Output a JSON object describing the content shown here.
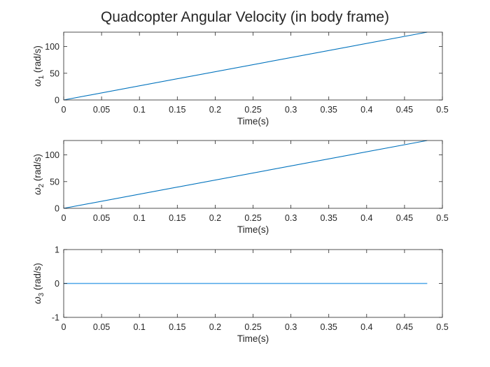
{
  "figure": {
    "title": "Quadcopter Angular Velocity (in body frame)"
  },
  "chart_data": [
    {
      "type": "line",
      "xlabel": "Time(s)",
      "ylabel": {
        "symbol": "ω",
        "subscript": "1",
        "unit": "(rad/s)"
      },
      "xlim": [
        0,
        0.5
      ],
      "ylim": [
        0,
        127
      ],
      "xticks": [
        "0",
        "0.05",
        "0.1",
        "0.15",
        "0.2",
        "0.25",
        "0.3",
        "0.35",
        "0.4",
        "0.45",
        "0.5"
      ],
      "yticks": [
        "0",
        "50",
        "100"
      ],
      "line_color": "#0072BD",
      "series": [
        {
          "x": [
            0,
            0.48
          ],
          "y": [
            0,
            127
          ]
        }
      ]
    },
    {
      "type": "line",
      "xlabel": "Time(s)",
      "ylabel": {
        "symbol": "ω",
        "subscript": "2",
        "unit": "(rad/s)"
      },
      "xlim": [
        0,
        0.5
      ],
      "ylim": [
        0,
        127
      ],
      "xticks": [
        "0",
        "0.05",
        "0.1",
        "0.15",
        "0.2",
        "0.25",
        "0.3",
        "0.35",
        "0.4",
        "0.45",
        "0.5"
      ],
      "yticks": [
        "0",
        "50",
        "100"
      ],
      "line_color": "#0072BD",
      "series": [
        {
          "x": [
            0,
            0.48
          ],
          "y": [
            0,
            127
          ]
        }
      ]
    },
    {
      "type": "line",
      "xlabel": "Time(s)",
      "ylabel": {
        "symbol": "ω",
        "subscript": "3",
        "unit": "(rad/s)"
      },
      "xlim": [
        0,
        0.5
      ],
      "ylim": [
        -1,
        1
      ],
      "xticks": [
        "0",
        "0.05",
        "0.1",
        "0.15",
        "0.2",
        "0.25",
        "0.3",
        "0.35",
        "0.4",
        "0.45",
        "0.5"
      ],
      "yticks": [
        "-1",
        "0",
        "1"
      ],
      "line_color": "#4DA6E8",
      "series": [
        {
          "x": [
            0,
            0.48
          ],
          "y": [
            0,
            0
          ]
        }
      ]
    }
  ]
}
